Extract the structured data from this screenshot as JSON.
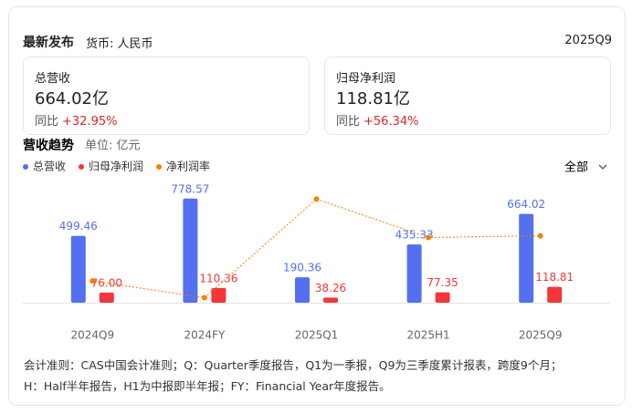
{
  "header": {
    "title": "最新发布",
    "currency": "货币: 人民币",
    "period": "2025Q9"
  },
  "cards": [
    {
      "label": "总营收",
      "value": "664.02亿",
      "yoy_label": "同比",
      "yoy": "+32.95%"
    },
    {
      "label": "归母净利润",
      "value": "118.81亿",
      "yoy_label": "同比",
      "yoy": "+56.34%"
    }
  ],
  "chart_data": {
    "type": "bar",
    "title": "营收趋势",
    "unit": "单位: 亿元",
    "filter": "全部",
    "categories": [
      "2024Q9",
      "2024FY",
      "2025Q1",
      "2025H1",
      "2025Q9"
    ],
    "series": [
      {
        "name": "总营收",
        "color": "#5470f0",
        "type": "bar",
        "values": [
          499.46,
          778.57,
          190.36,
          435.33,
          664.02
        ]
      },
      {
        "name": "归母净利润",
        "color": "#f2363a",
        "type": "bar",
        "values": [
          76,
          110.36,
          38.26,
          77.35,
          118.81
        ],
        "value_labels": [
          "76.00",
          "110.36",
          "38.26",
          "77.35",
          "118.81"
        ]
      },
      {
        "name": "净利润率",
        "color": "#f77f00",
        "type": "line",
        "axis": "y2",
        "values": [
          15.2,
          14.2,
          20.1,
          17.8,
          17.9
        ]
      }
    ],
    "ylim": [
      0,
      900
    ],
    "y2lim": [
      13.9,
      21.1
    ]
  },
  "footnote": [
    "会计准则：CAS中国会计准则；Q：Quarter季度报告，Q1为一季报，Q9为三季度累计报表，跨度9个月；",
    "H：Half半年报告，H1为中报即半年报；FY：Financial Year年度报告。"
  ]
}
